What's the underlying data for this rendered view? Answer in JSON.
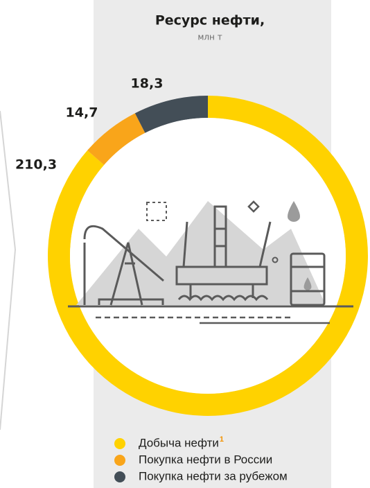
{
  "chart_data": {
    "type": "donut",
    "title": "Ресурс нефти,",
    "subtitle": "млн т",
    "categories": [
      "Добыча нефти",
      "Покупка нефти в России",
      "Покупка нефти за рубежом"
    ],
    "values": [
      210.3,
      14.7,
      18.3
    ],
    "value_labels": [
      "210,3",
      "14,7",
      "18,3"
    ],
    "colors": [
      "#ffd200",
      "#f9a51a",
      "#434e57"
    ],
    "legend_footnote": "1"
  }
}
